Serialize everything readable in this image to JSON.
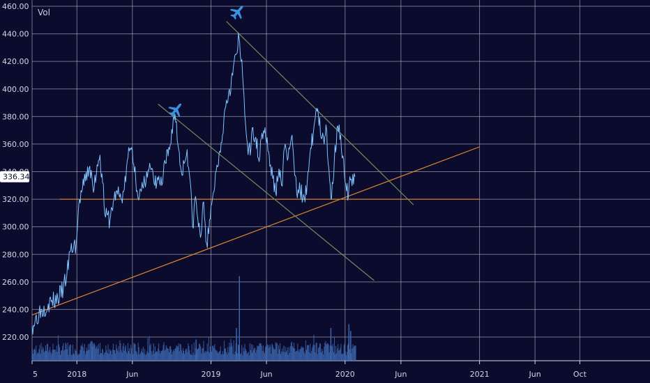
{
  "chart_data": {
    "type": "line",
    "title": "",
    "volume_label": "Vol",
    "current_price_label": "336.34",
    "current_price": 336.34,
    "ylim": [
      200,
      466
    ],
    "y_ticks": [
      {
        "value": 220,
        "label": "220.00"
      },
      {
        "value": 240,
        "label": "240.00"
      },
      {
        "value": 260,
        "label": "260.00"
      },
      {
        "value": 280,
        "label": "280.00"
      },
      {
        "value": 300,
        "label": "300.00"
      },
      {
        "value": 320,
        "label": "320.00"
      },
      {
        "value": 340,
        "label": "340.00"
      },
      {
        "value": 360,
        "label": "360.00"
      },
      {
        "value": 380,
        "label": "380.00"
      },
      {
        "value": 400,
        "label": "400.00"
      },
      {
        "value": 420,
        "label": "420.00"
      },
      {
        "value": 440,
        "label": "440.00"
      },
      {
        "value": 460,
        "label": "460.00"
      }
    ],
    "x_ticks": [
      {
        "date": "2017-09-01",
        "label": "5"
      },
      {
        "date": "2018-01-01",
        "label": "2018"
      },
      {
        "date": "2018-06-01",
        "label": "Jun"
      },
      {
        "date": "2019-01-01",
        "label": "2019"
      },
      {
        "date": "2019-06-01",
        "label": "Jun"
      },
      {
        "date": "2020-01-01",
        "label": "2020"
      },
      {
        "date": "2020-06-01",
        "label": "Jun"
      },
      {
        "date": "2021-01-01",
        "label": "2021"
      },
      {
        "date": "2021-06-01",
        "label": "Jun"
      },
      {
        "date": "2021-10-01",
        "label": "Oct"
      }
    ],
    "xlim": [
      "2017-09-01",
      "2022-04-10"
    ],
    "grid": true,
    "series": [
      {
        "color": "#7fc4ff",
        "points": [
          [
            "2017-09-01",
            228
          ],
          [
            "2017-09-20",
            238
          ],
          [
            "2017-10-15",
            244
          ],
          [
            "2017-11-10",
            248
          ],
          [
            "2017-11-25",
            255
          ],
          [
            "2017-12-05",
            266
          ],
          [
            "2017-12-15",
            283
          ],
          [
            "2017-12-30",
            287
          ],
          [
            "2018-01-08",
            320
          ],
          [
            "2018-01-20",
            330
          ],
          [
            "2018-02-05",
            344
          ],
          [
            "2018-02-15",
            325
          ],
          [
            "2018-02-25",
            345
          ],
          [
            "2018-03-05",
            352
          ],
          [
            "2018-03-12",
            332
          ],
          [
            "2018-03-20",
            307
          ],
          [
            "2018-04-01",
            305
          ],
          [
            "2018-04-10",
            318
          ],
          [
            "2018-04-20",
            326
          ],
          [
            "2018-05-01",
            320
          ],
          [
            "2018-05-10",
            327
          ],
          [
            "2018-05-20",
            350
          ],
          [
            "2018-05-26",
            357
          ],
          [
            "2018-06-01",
            355
          ],
          [
            "2018-06-10",
            335
          ],
          [
            "2018-06-20",
            322
          ],
          [
            "2018-07-01",
            328
          ],
          [
            "2018-07-10",
            340
          ],
          [
            "2018-07-20",
            343
          ],
          [
            "2018-08-01",
            330
          ],
          [
            "2018-08-10",
            334
          ],
          [
            "2018-08-20",
            330
          ],
          [
            "2018-08-30",
            346
          ],
          [
            "2018-09-10",
            356
          ],
          [
            "2018-09-20",
            378
          ],
          [
            "2018-09-25",
            382
          ],
          [
            "2018-10-05",
            356
          ],
          [
            "2018-10-12",
            340
          ],
          [
            "2018-10-20",
            346
          ],
          [
            "2018-10-28",
            356
          ],
          [
            "2018-11-05",
            334
          ],
          [
            "2018-11-12",
            300
          ],
          [
            "2018-11-20",
            322
          ],
          [
            "2018-11-28",
            300
          ],
          [
            "2018-12-05",
            294
          ],
          [
            "2018-12-12",
            318
          ],
          [
            "2018-12-20",
            288
          ],
          [
            "2018-12-26",
            295
          ],
          [
            "2019-01-05",
            320
          ],
          [
            "2019-01-15",
            340
          ],
          [
            "2019-01-25",
            355
          ],
          [
            "2019-02-05",
            378
          ],
          [
            "2019-02-12",
            392
          ],
          [
            "2019-02-20",
            400
          ],
          [
            "2019-03-01",
            410
          ],
          [
            "2019-03-05",
            420
          ],
          [
            "2019-03-10",
            425
          ],
          [
            "2019-03-15",
            430
          ],
          [
            "2019-03-18",
            438
          ],
          [
            "2019-03-24",
            420
          ],
          [
            "2019-03-28",
            410
          ],
          [
            "2019-04-05",
            375
          ],
          [
            "2019-04-10",
            360
          ],
          [
            "2019-04-18",
            352
          ],
          [
            "2019-04-25",
            372
          ],
          [
            "2019-05-03",
            365
          ],
          [
            "2019-05-10",
            350
          ],
          [
            "2019-05-20",
            368
          ],
          [
            "2019-05-28",
            372
          ],
          [
            "2019-06-05",
            355
          ],
          [
            "2019-06-12",
            345
          ],
          [
            "2019-06-18",
            335
          ],
          [
            "2019-06-26",
            325
          ],
          [
            "2019-07-05",
            342
          ],
          [
            "2019-07-12",
            330
          ],
          [
            "2019-07-22",
            360
          ],
          [
            "2019-07-30",
            350
          ],
          [
            "2019-08-08",
            365
          ],
          [
            "2019-08-15",
            345
          ],
          [
            "2019-08-22",
            325
          ],
          [
            "2019-08-30",
            332
          ],
          [
            "2019-09-08",
            320
          ],
          [
            "2019-09-14",
            318
          ],
          [
            "2019-09-22",
            340
          ],
          [
            "2019-10-01",
            357
          ],
          [
            "2019-10-08",
            372
          ],
          [
            "2019-10-15",
            386
          ],
          [
            "2019-10-20",
            382
          ],
          [
            "2019-10-28",
            364
          ],
          [
            "2019-11-05",
            360
          ],
          [
            "2019-11-10",
            374
          ],
          [
            "2019-11-18",
            342
          ],
          [
            "2019-11-25",
            320
          ],
          [
            "2019-12-03",
            350
          ],
          [
            "2019-12-10",
            372
          ],
          [
            "2019-12-16",
            374
          ],
          [
            "2019-12-22",
            356
          ],
          [
            "2019-12-30",
            338
          ],
          [
            "2020-01-05",
            326
          ],
          [
            "2020-01-10",
            322
          ],
          [
            "2020-01-16",
            334
          ],
          [
            "2020-01-22",
            338
          ],
          [
            "2020-01-28",
            336.34
          ]
        ]
      }
    ],
    "volume": {
      "baseline_period": [
        "2017-09-01",
        "2020-01-30"
      ],
      "spikes": [
        {
          "date": "2019-03-18",
          "value": 0.88
        },
        {
          "date": "2019-03-10",
          "value": 0.34
        },
        {
          "date": "2019-11-22",
          "value": 0.34
        },
        {
          "date": "2020-01-10",
          "value": 0.38
        },
        {
          "date": "2020-01-15",
          "value": 0.31
        },
        {
          "date": "2018-02-10",
          "value": 0.2
        },
        {
          "date": "2018-11-20",
          "value": 0.22
        }
      ],
      "color": "#3e6cb4"
    },
    "trendlines": [
      {
        "name": "support-horizontal",
        "color": "#e0852f",
        "from": [
          "2017-11-15",
          320
        ],
        "to": [
          "2021-01-01",
          320
        ]
      },
      {
        "name": "rising-support",
        "color": "#e0892f",
        "from": [
          "2017-09-01",
          236
        ],
        "to": [
          "2021-01-01",
          358
        ]
      },
      {
        "name": "descending-upper",
        "color": "#6f8f5e",
        "from": [
          "2019-02-12",
          449
        ],
        "to": [
          "2020-07-05",
          316
        ]
      },
      {
        "name": "descending-lower",
        "color": "#6f8f5e",
        "from": [
          "2018-08-10",
          389
        ],
        "to": [
          "2020-03-20",
          261
        ]
      }
    ],
    "markers": [
      {
        "name": "airplane-marker-2019",
        "date": "2019-03-15",
        "value": 456
      },
      {
        "name": "airplane-marker-2018",
        "date": "2018-09-28",
        "value": 385
      }
    ]
  }
}
